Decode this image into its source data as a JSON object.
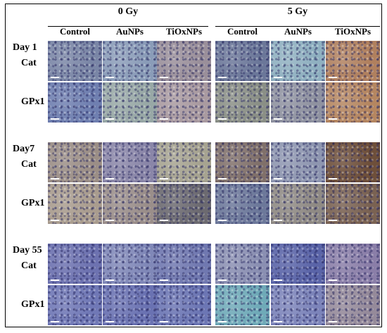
{
  "doses": [
    "0 Gy",
    "5 Gy"
  ],
  "columns": [
    "Control",
    "AuNPs",
    "TiOxNPs",
    "Control",
    "AuNPs",
    "TiOxNPs"
  ],
  "groups": [
    {
      "day": "Day 1",
      "rows": [
        {
          "label": "Cat",
          "tones": [
            "#7a86a6",
            "#8a9cb8",
            "#9a8f9a",
            "#6b7799",
            "#8fb0c0",
            "#b0805e"
          ]
        },
        {
          "label": "GPx1",
          "tones": [
            "#6f7fb0",
            "#98a8a6",
            "#a99aa0",
            "#8a8f86",
            "#8f92a0",
            "#b58660"
          ]
        }
      ]
    },
    {
      "day": "Day7",
      "rows": [
        {
          "label": "Cat",
          "tones": [
            "#9b8e86",
            "#8a86a8",
            "#a6a390",
            "#80706a",
            "#8e96b0",
            "#6e4f3a"
          ]
        },
        {
          "label": "GPx1",
          "tones": [
            "#a99c8e",
            "#9a8e8a",
            "#6c6a70",
            "#6c789a",
            "#8f8a84",
            "#7a6252"
          ]
        }
      ]
    },
    {
      "day": "Day 55",
      "rows": [
        {
          "label": "Cat",
          "tones": [
            "#6d72b0",
            "#8088b8",
            "#7078b0",
            "#8a8fb2",
            "#5a64a8",
            "#8a7ea8"
          ]
        },
        {
          "label": "GPx1",
          "tones": [
            "#7078b6",
            "#6a72b2",
            "#6c76b4",
            "#6faab8",
            "#7c84ba",
            "#958a9a"
          ]
        }
      ]
    }
  ]
}
